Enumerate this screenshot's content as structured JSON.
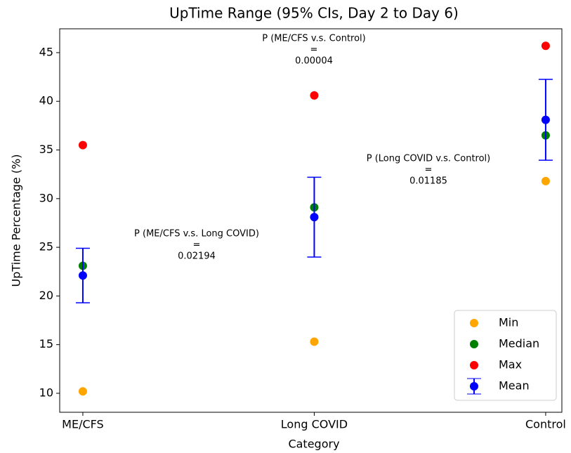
{
  "chart_data": {
    "type": "scatter",
    "title": "UpTime Range (95% CIs, Day 2 to Day 6)",
    "x_label": "Category",
    "y_label": "UpTime Percentage (%)",
    "categories": [
      "ME/CFS",
      "Long COVID",
      "Control"
    ],
    "series": [
      {
        "name": "Min",
        "color": "#ffa500",
        "values": [
          10.2,
          15.3,
          31.8
        ]
      },
      {
        "name": "Median",
        "color": "#008000",
        "values": [
          23.1,
          29.1,
          36.5
        ]
      },
      {
        "name": "Max",
        "color": "#ff0000",
        "values": [
          35.5,
          40.6,
          45.7
        ]
      },
      {
        "name": "Mean",
        "color": "#0000ff",
        "values": [
          22.1,
          28.1,
          38.1
        ],
        "errors": [
          2.8,
          4.1,
          4.15
        ]
      }
    ],
    "ylim": [
      8.05,
      47.45
    ],
    "yticks": [
      10,
      15,
      20,
      25,
      30,
      35,
      40,
      45
    ],
    "legend": "lower right",
    "annotations": [
      {
        "lines": [
          "P (ME/CFS v.s. Long COVID)",
          "=",
          "0.02194"
        ]
      },
      {
        "lines": [
          "P (ME/CFS v.s. Control)",
          "=",
          "0.00004"
        ]
      },
      {
        "lines": [
          "P (Long COVID v.s. Control)",
          "=",
          "0.01185"
        ]
      }
    ]
  }
}
